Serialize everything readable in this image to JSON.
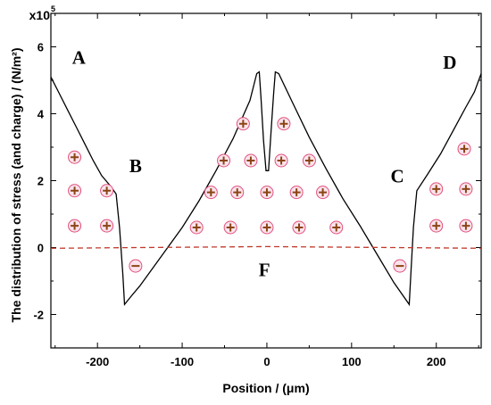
{
  "chart_data": {
    "type": "line",
    "xlabel": "Position / (μm)",
    "ylabel": "The distribution of stress (and charge) / (N/m²)",
    "y_scale_label": "x10",
    "y_scale_exponent": "5",
    "xlim": [
      -255,
      253
    ],
    "ylim": [
      -3.0,
      7.0
    ],
    "x_ticks": [
      -200,
      -100,
      0,
      100,
      200
    ],
    "x_tick_labels": [
      "-200",
      "-100",
      "0",
      "100",
      "200"
    ],
    "y_ticks": [
      -2,
      0,
      2,
      4,
      6
    ],
    "y_tick_labels": [
      "-2",
      "0",
      "2",
      "4",
      "6"
    ],
    "grid": false,
    "series": [
      {
        "style": "solid",
        "color": "#000000",
        "points": [
          [
            -255,
            5.1
          ],
          [
            -245,
            4.6
          ],
          [
            -235,
            4.1
          ],
          [
            -225,
            3.6
          ],
          [
            -215,
            3.1
          ],
          [
            -205,
            2.6
          ],
          [
            -195,
            2.15
          ],
          [
            -185,
            1.85
          ],
          [
            -178,
            1.6
          ],
          [
            -174,
            0.6
          ],
          [
            -170,
            -0.8
          ],
          [
            -168,
            -1.7
          ],
          [
            -160,
            -1.45
          ],
          [
            -150,
            -1.15
          ],
          [
            -140,
            -0.8
          ],
          [
            -130,
            -0.45
          ],
          [
            -120,
            -0.1
          ],
          [
            -100,
            0.6
          ],
          [
            -80,
            1.4
          ],
          [
            -60,
            2.3
          ],
          [
            -40,
            3.25
          ],
          [
            -20,
            4.4
          ],
          [
            -12,
            5.2
          ],
          [
            -9,
            5.25
          ],
          [
            -7,
            4.5
          ],
          [
            -4,
            3.2
          ],
          [
            -1,
            2.3
          ],
          [
            2,
            2.3
          ],
          [
            5,
            3.5
          ],
          [
            8,
            4.6
          ],
          [
            10,
            5.25
          ],
          [
            14,
            5.2
          ],
          [
            30,
            4.35
          ],
          [
            50,
            3.3
          ],
          [
            70,
            2.35
          ],
          [
            90,
            1.45
          ],
          [
            110,
            0.65
          ],
          [
            130,
            -0.2
          ],
          [
            150,
            -1.05
          ],
          [
            168,
            -1.7
          ],
          [
            170,
            -0.8
          ],
          [
            173,
            0.6
          ],
          [
            177,
            1.7
          ],
          [
            190,
            2.2
          ],
          [
            205,
            2.8
          ],
          [
            220,
            3.5
          ],
          [
            235,
            4.2
          ],
          [
            245,
            4.65
          ],
          [
            253,
            5.2
          ]
        ]
      },
      {
        "style": "dashed",
        "color": "#c0392b",
        "points": [
          [
            -255,
            -0.02
          ],
          [
            -150,
            0.0
          ],
          [
            -50,
            0.02
          ],
          [
            0,
            0.03
          ],
          [
            50,
            0.02
          ],
          [
            150,
            0.0
          ],
          [
            253,
            -0.02
          ]
        ]
      }
    ],
    "annotations": [
      {
        "text": "A",
        "x": -222,
        "y": 5.5
      },
      {
        "text": "B",
        "x": -155,
        "y": 2.25
      },
      {
        "text": "C",
        "x": 154,
        "y": 1.95
      },
      {
        "text": "D",
        "x": 216,
        "y": 5.35
      },
      {
        "text": "F",
        "x": -3,
        "y": -0.85
      }
    ],
    "charges_positive": [
      [
        -227,
        2.7
      ],
      [
        -227,
        1.7
      ],
      [
        -189,
        1.7
      ],
      [
        -227,
        0.65
      ],
      [
        -189,
        0.65
      ],
      [
        -28,
        3.7
      ],
      [
        20,
        3.7
      ],
      [
        -51,
        2.6
      ],
      [
        -19,
        2.6
      ],
      [
        17,
        2.6
      ],
      [
        50,
        2.6
      ],
      [
        -66,
        1.65
      ],
      [
        -35,
        1.65
      ],
      [
        0,
        1.65
      ],
      [
        35,
        1.65
      ],
      [
        66,
        1.65
      ],
      [
        -83,
        0.6
      ],
      [
        -43,
        0.6
      ],
      [
        0,
        0.6
      ],
      [
        38,
        0.6
      ],
      [
        82,
        0.6
      ],
      [
        200,
        1.75
      ],
      [
        235,
        1.75
      ],
      [
        233,
        2.95
      ],
      [
        200,
        0.65
      ],
      [
        235,
        0.65
      ]
    ],
    "charges_negative": [
      [
        -155,
        -0.55
      ],
      [
        157,
        -0.55
      ]
    ]
  }
}
